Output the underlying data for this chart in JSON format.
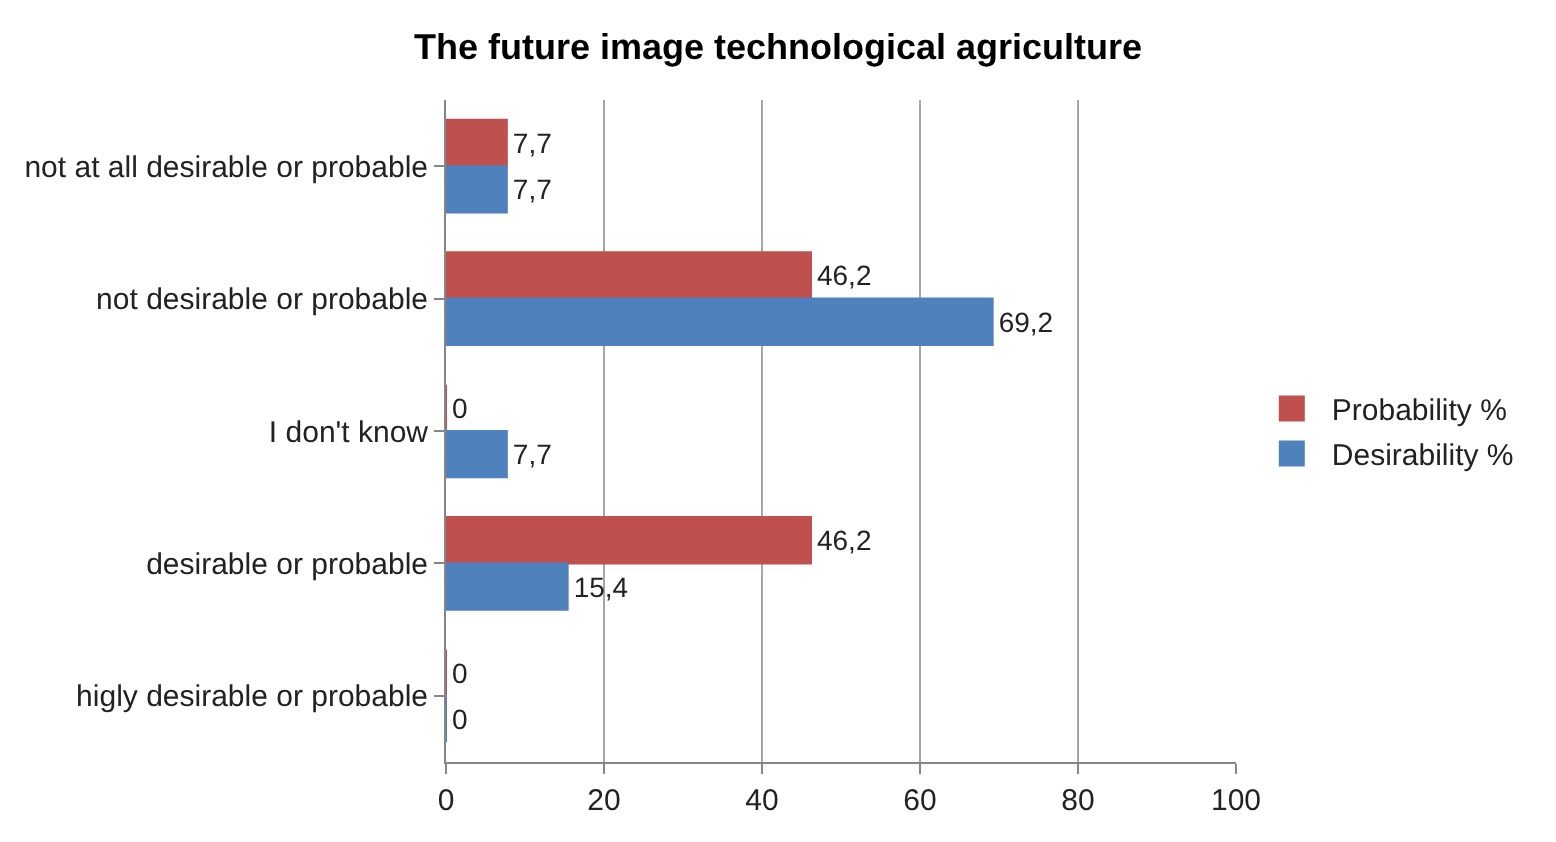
{
  "chart_data": {
    "type": "bar",
    "orientation": "horizontal",
    "title": "The future image technological agriculture",
    "categories": [
      "not at all desirable or probable",
      "not desirable or probable",
      "I don't know",
      "desirable or probable",
      "higly desirable or probable"
    ],
    "series": [
      {
        "name": "Probability %",
        "color": "#c0504d",
        "values": [
          7.7,
          46.2,
          0,
          46.2,
          0
        ],
        "value_labels": [
          "7,7",
          "46,2",
          "0",
          "46,2",
          "0"
        ]
      },
      {
        "name": "Desirability %",
        "color": "#4f81bd",
        "values": [
          7.7,
          69.2,
          7.7,
          15.4,
          0
        ],
        "value_labels": [
          "7,7",
          "69,2",
          "7,7",
          "15,4",
          "0"
        ]
      }
    ],
    "xlim": [
      0,
      100
    ],
    "xticks": [
      0,
      20,
      40,
      60,
      80,
      100
    ],
    "grid": "x",
    "legend": "right"
  }
}
